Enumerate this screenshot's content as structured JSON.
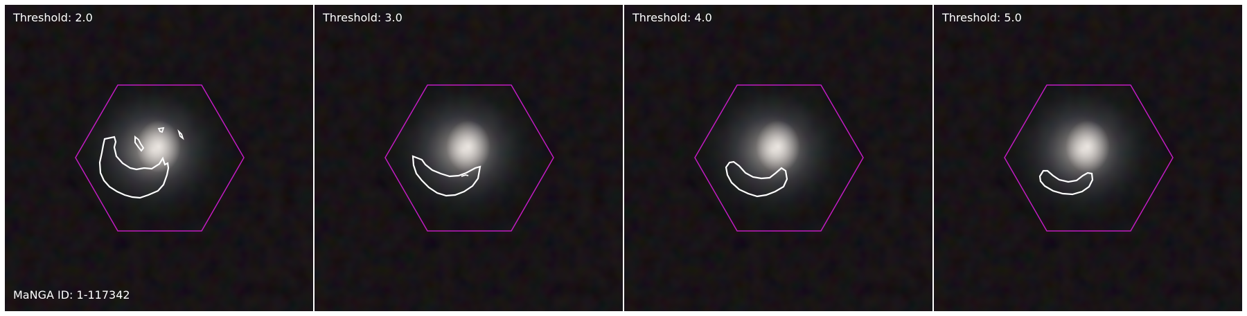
{
  "panels": [
    {
      "threshold_label": "Threshold: 2.0",
      "manga_label": "MaNGA ID: 1-117342"
    },
    {
      "threshold_label": "Threshold: 3.0"
    },
    {
      "threshold_label": "Threshold: 4.0"
    },
    {
      "threshold_label": "Threshold: 5.0"
    }
  ],
  "colors": {
    "hexagon": "#c21cc2",
    "contour": "#ffffff",
    "background": "#000000"
  }
}
